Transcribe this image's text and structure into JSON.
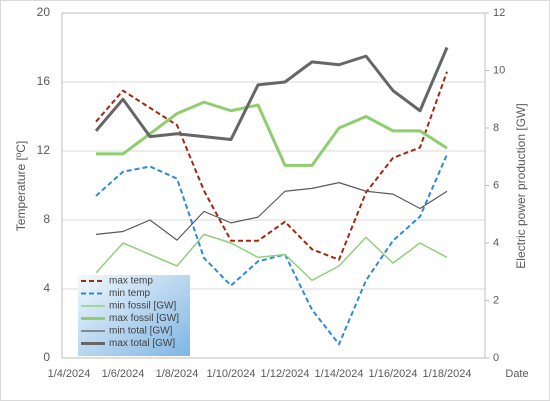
{
  "chart_data": {
    "type": "line",
    "y_label": "Temperature [ºC]",
    "y2_label": "Electric power production [GW]",
    "x_label": "Date",
    "categories": [
      "1/4/2024",
      null,
      "1/6/2024",
      null,
      "1/8/2024",
      null,
      "1/10/2024",
      null,
      "1/12/2024",
      null,
      "1/14/2024",
      null,
      "1/16/2024",
      null,
      "1/18/2024"
    ],
    "ylim": [
      0,
      20
    ],
    "yticks": [
      0,
      4,
      8,
      12,
      16,
      20
    ],
    "y2lim": [
      0,
      12
    ],
    "y2ticks": [
      0,
      2,
      4,
      6,
      8,
      10,
      12
    ],
    "grid": true,
    "legend": "lower left",
    "series": [
      {
        "name": "max temp",
        "color": "#a0290d",
        "dash": true,
        "width": 2,
        "values": [
          null,
          13.7,
          15.5,
          14.5,
          13.5,
          9.7,
          6.8,
          6.8,
          7.9,
          6.3,
          5.7,
          9.6,
          11.6,
          12.2,
          16.6
        ]
      },
      {
        "name": "min temp",
        "color": "#2e8ad8",
        "dash": true,
        "width": 2,
        "values": [
          null,
          9.4,
          10.8,
          11.1,
          10.4,
          5.8,
          4.2,
          5.6,
          6.0,
          2.8,
          0.8,
          4.5,
          6.8,
          8.2,
          11.8
        ]
      },
      {
        "name": "min  fossil [GW]",
        "color": "#92cf7c",
        "axis": "y2",
        "width": 1.5,
        "values": [
          null,
          2.96,
          4.0,
          3.6,
          3.2,
          4.3,
          4.0,
          3.5,
          3.6,
          2.7,
          3.2,
          4.2,
          3.3,
          4.0,
          3.5
        ]
      },
      {
        "name": "max fossil [GW]",
        "color": "#8fcd6e",
        "axis": "y2",
        "width": 3,
        "values": [
          null,
          7.1,
          7.1,
          7.8,
          8.5,
          8.9,
          8.6,
          8.8,
          6.7,
          6.7,
          8.0,
          8.4,
          7.9,
          7.9,
          7.3
        ]
      },
      {
        "name": "min total [GW]",
        "color": "#595959",
        "axis": "y2",
        "width": 1.2,
        "values": [
          null,
          4.3,
          4.4,
          4.8,
          4.1,
          5.1,
          4.7,
          4.9,
          5.8,
          5.9,
          6.1,
          5.8,
          5.7,
          5.2,
          5.8
        ]
      },
      {
        "name": "max total [GW]",
        "color": "#666666",
        "axis": "y2",
        "width": 3,
        "values": [
          null,
          7.9,
          9.0,
          7.7,
          7.8,
          7.7,
          7.6,
          9.5,
          9.6,
          10.3,
          10.2,
          10.5,
          9.3,
          8.6,
          10.8
        ]
      }
    ]
  }
}
